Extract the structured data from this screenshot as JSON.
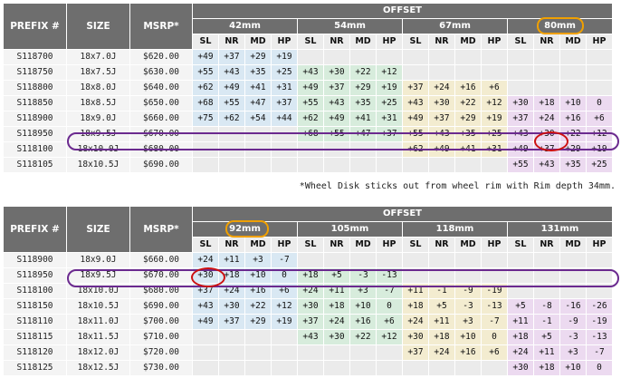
{
  "table1": {
    "headers": {
      "prefix": "PREFIX #",
      "size": "SIZE",
      "msrp": "MSRP*",
      "offset": "OFFSET"
    },
    "groups": [
      "42mm",
      "54mm",
      "67mm",
      "80mm"
    ],
    "subs": [
      "SL",
      "NR",
      "MD",
      "HP"
    ],
    "rows": [
      {
        "id": "S118700",
        "size": "18x7.0J",
        "price": "$620.00",
        "cells": [
          "+49",
          "+37",
          "+29",
          "+19",
          "",
          "",
          "",
          "",
          "",
          "",
          "",
          "",
          "",
          "",
          "",
          ""
        ]
      },
      {
        "id": "S118750",
        "size": "18x7.5J",
        "price": "$630.00",
        "cells": [
          "+55",
          "+43",
          "+35",
          "+25",
          "+43",
          "+30",
          "+22",
          "+12",
          "",
          "",
          "",
          "",
          "",
          "",
          "",
          ""
        ]
      },
      {
        "id": "S118800",
        "size": "18x8.0J",
        "price": "$640.00",
        "cells": [
          "+62",
          "+49",
          "+41",
          "+31",
          "+49",
          "+37",
          "+29",
          "+19",
          "+37",
          "+24",
          "+16",
          "+6",
          "",
          "",
          "",
          ""
        ]
      },
      {
        "id": "S118850",
        "size": "18x8.5J",
        "price": "$650.00",
        "cells": [
          "+68",
          "+55",
          "+47",
          "+37",
          "+55",
          "+43",
          "+35",
          "+25",
          "+43",
          "+30",
          "+22",
          "+12",
          "+30",
          "+18",
          "+10",
          "0"
        ]
      },
      {
        "id": "S118900",
        "size": "18x9.0J",
        "price": "$660.00",
        "cells": [
          "+75",
          "+62",
          "+54",
          "+44",
          "+62",
          "+49",
          "+41",
          "+31",
          "+49",
          "+37",
          "+29",
          "+19",
          "+37",
          "+24",
          "+16",
          "+6"
        ]
      },
      {
        "id": "S118950",
        "size": "18x9.5J",
        "price": "$670.00",
        "cells": [
          "",
          "",
          "",
          "",
          "+68",
          "+55",
          "+47",
          "+37",
          "+55",
          "+43",
          "+35",
          "+25",
          "+43",
          "+30",
          "+22",
          "+12"
        ]
      },
      {
        "id": "S118100",
        "size": "18x10.0J",
        "price": "$680.00",
        "cells": [
          "",
          "",
          "",
          "",
          "",
          "",
          "",
          "",
          "+62",
          "+49",
          "+41",
          "+31",
          "+49",
          "+37",
          "+29",
          "+19"
        ]
      },
      {
        "id": "S118105",
        "size": "18x10.5J",
        "price": "$690.00",
        "cells": [
          "",
          "",
          "",
          "",
          "",
          "",
          "",
          "",
          "",
          "",
          "",
          "",
          "+55",
          "+43",
          "+35",
          "+25"
        ]
      }
    ]
  },
  "note": "*Wheel Disk sticks out from wheel rim with Rim depth 34mm.",
  "table2": {
    "headers": {
      "prefix": "PREFIX #",
      "size": "SIZE",
      "msrp": "MSRP*",
      "offset": "OFFSET"
    },
    "groups": [
      "92mm",
      "105mm",
      "118mm",
      "131mm"
    ],
    "subs": [
      "SL",
      "NR",
      "MD",
      "HP"
    ],
    "rows": [
      {
        "id": "S118900",
        "size": "18x9.0J",
        "price": "$660.00",
        "cells": [
          "+24",
          "+11",
          "+3",
          "-7",
          "",
          "",
          "",
          "",
          "",
          "",
          "",
          "",
          "",
          "",
          "",
          ""
        ]
      },
      {
        "id": "S118950",
        "size": "18x9.5J",
        "price": "$670.00",
        "cells": [
          "+30",
          "+18",
          "+10",
          "0",
          "+18",
          "+5",
          "-3",
          "-13",
          "",
          "",
          "",
          "",
          "",
          "",
          "",
          ""
        ]
      },
      {
        "id": "S118100",
        "size": "18x10.0J",
        "price": "$680.00",
        "cells": [
          "+37",
          "+24",
          "+16",
          "+6",
          "+24",
          "+11",
          "+3",
          "-7",
          "+11",
          "-1",
          "-9",
          "-19",
          "",
          "",
          "",
          ""
        ]
      },
      {
        "id": "S118150",
        "size": "18x10.5J",
        "price": "$690.00",
        "cells": [
          "+43",
          "+30",
          "+22",
          "+12",
          "+30",
          "+18",
          "+10",
          "0",
          "+18",
          "+5",
          "-3",
          "-13",
          "+5",
          "-8",
          "-16",
          "-26"
        ]
      },
      {
        "id": "S118110",
        "size": "18x11.0J",
        "price": "$700.00",
        "cells": [
          "+49",
          "+37",
          "+29",
          "+19",
          "+37",
          "+24",
          "+16",
          "+6",
          "+24",
          "+11",
          "+3",
          "-7",
          "+11",
          "-1",
          "-9",
          "-19"
        ]
      },
      {
        "id": "S118115",
        "size": "18x11.5J",
        "price": "$710.00",
        "cells": [
          "",
          "",
          "",
          "",
          "+43",
          "+30",
          "+22",
          "+12",
          "+30",
          "+18",
          "+10",
          "0",
          "+18",
          "+5",
          "-3",
          "-13"
        ]
      },
      {
        "id": "S118120",
        "size": "18x12.0J",
        "price": "$720.00",
        "cells": [
          "",
          "",
          "",
          "",
          "",
          "",
          "",
          "",
          "+37",
          "+24",
          "+16",
          "+6",
          "+24",
          "+11",
          "+3",
          "-7"
        ]
      },
      {
        "id": "S118125",
        "size": "18x12.5J",
        "price": "$730.00",
        "cells": [
          "",
          "",
          "",
          "",
          "",
          "",
          "",
          "",
          "",
          "",
          "",
          "",
          "+30",
          "+18",
          "+10",
          "0"
        ]
      }
    ]
  },
  "colors": {
    "header_bg": "#6e6e6e",
    "group_colors": [
      "#d9e8f3",
      "#d7ecdc",
      "#f3ecd0",
      "#ecdaf0"
    ]
  }
}
